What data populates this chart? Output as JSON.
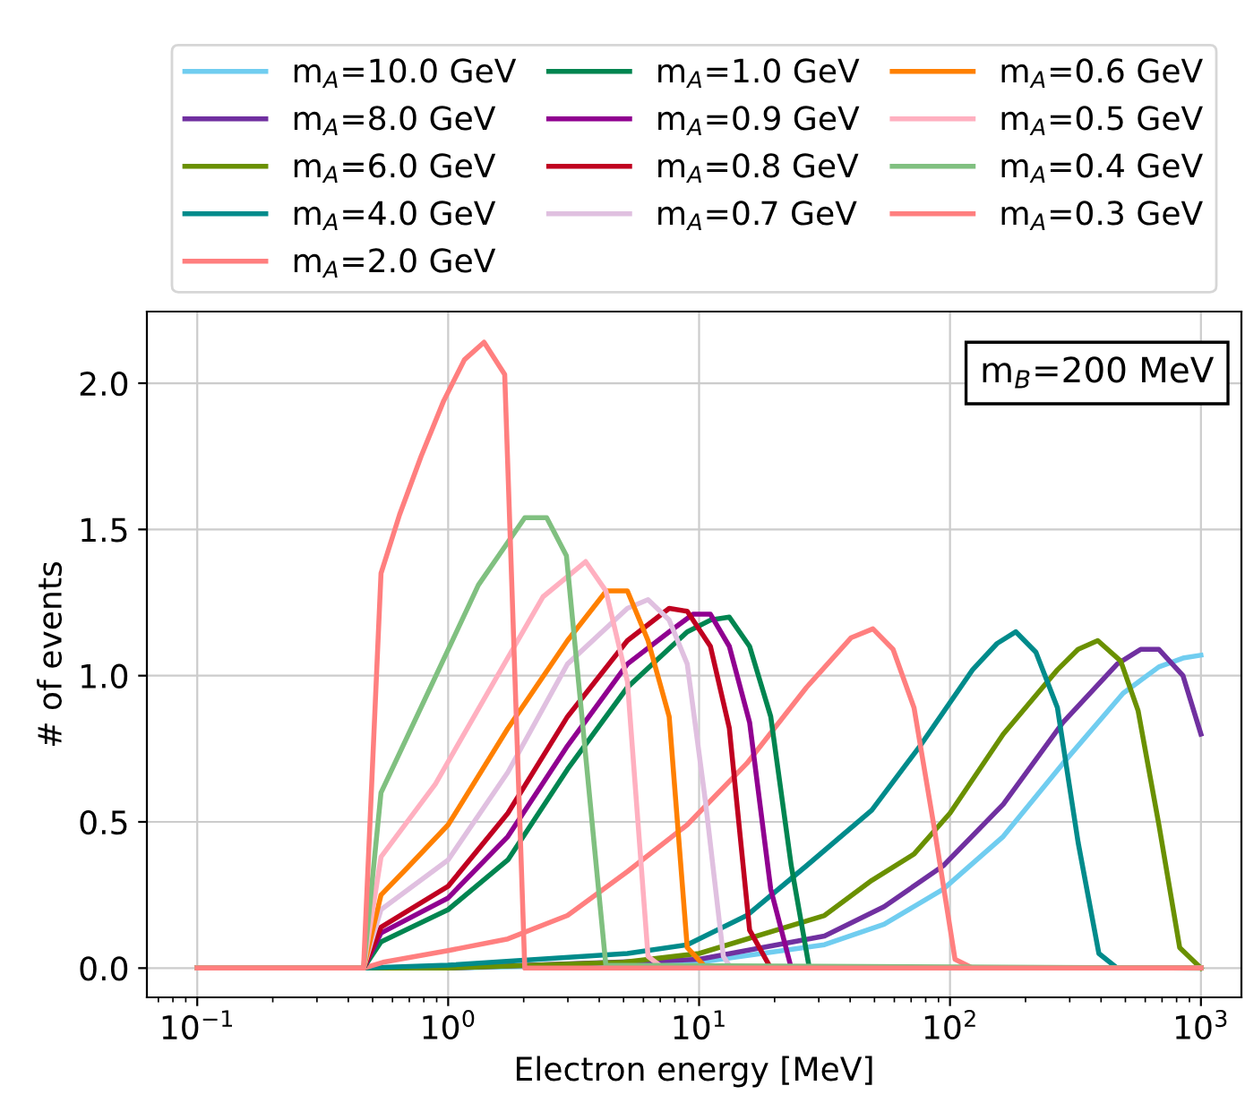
{
  "chart_data": {
    "type": "line",
    "xlabel": "Electron energy [MeV]",
    "ylabel": "# of events",
    "log": "x",
    "grid": true,
    "legend": "top",
    "line_style": "solid",
    "marker": "none",
    "xlim": [
      0.063,
      1450
    ],
    "ylim": [
      -0.1,
      2.245
    ],
    "xticks": [
      {
        "value": 0.1,
        "label": "10$^{−1}$"
      },
      {
        "value": 1,
        "label": "10$^{0}$"
      },
      {
        "value": 10,
        "label": "10$^{1}$"
      },
      {
        "value": 100,
        "label": "10$^{2}$"
      },
      {
        "value": 1000,
        "label": "10$^{3}$"
      }
    ],
    "yticks": [
      {
        "value": 0,
        "label": "0.0"
      },
      {
        "value": 0.5,
        "label": "0.5"
      },
      {
        "value": 1,
        "label": "1.0"
      },
      {
        "value": 1.5,
        "label": "1.5"
      },
      {
        "value": 2,
        "label": "2.0"
      }
    ],
    "annotations": [
      "m$_{B}$=200 MeV"
    ],
    "series": [
      {
        "name": "m$_{A}$=10.0 GeV",
        "color": "#70cdf0",
        "x": [
          0.1,
          0.46,
          1,
          10,
          31.6,
          54.6,
          94,
          163,
          282,
          490,
          680,
          848,
          1000
        ],
        "values": [
          0,
          0,
          0.0,
          0.02,
          0.08,
          0.15,
          0.27,
          0.45,
          0.7,
          0.94,
          1.03,
          1.06,
          1.07
        ]
      },
      {
        "name": "m$_{A}$=8.0 GeV",
        "color": "#7030a0",
        "x": [
          0.1,
          0.46,
          1,
          10,
          31.6,
          54.6,
          94,
          163,
          282,
          464,
          575,
          680,
          848,
          1000
        ],
        "values": [
          0,
          0,
          0.0,
          0.03,
          0.11,
          0.21,
          0.35,
          0.56,
          0.84,
          1.04,
          1.09,
          1.09,
          1.0,
          0.8
        ]
      },
      {
        "name": "m$_{A}$=6.0 GeV",
        "color": "#6a9000",
        "x": [
          0.1,
          0.46,
          1,
          5,
          10,
          31.6,
          48.8,
          71.9,
          100,
          163,
          268,
          324,
          388,
          479,
          562,
          680,
          823,
          1000
        ],
        "values": [
          0,
          0,
          0.0,
          0.02,
          0.05,
          0.18,
          0.3,
          0.39,
          0.53,
          0.8,
          1.02,
          1.09,
          1.12,
          1.05,
          0.88,
          0.49,
          0.07,
          0
        ]
      },
      {
        "name": "m$_{A}$=4.0 GeV",
        "color": "#008b8b",
        "x": [
          0.1,
          0.46,
          1,
          5.18,
          8.97,
          15.5,
          26.8,
          48.8,
          76,
          123,
          154,
          183,
          220,
          268,
          324,
          392,
          464,
          1000
        ],
        "values": [
          0,
          0,
          0.01,
          0.05,
          0.08,
          0.18,
          0.35,
          0.54,
          0.76,
          1.02,
          1.11,
          1.15,
          1.08,
          0.89,
          0.43,
          0.05,
          0,
          0
        ]
      },
      {
        "name": "m$_{A}$=2.0 GeV",
        "color": "#ff7f7f",
        "x": [
          0.1,
          0.46,
          0.55,
          1,
          1.73,
          2.99,
          5.18,
          8.97,
          15.5,
          26.8,
          40.4,
          49.3,
          59.3,
          71.9,
          86.9,
          104.7,
          123,
          1000
        ],
        "values": [
          0,
          0,
          0.02,
          0.06,
          0.1,
          0.18,
          0.33,
          0.49,
          0.7,
          0.96,
          1.13,
          1.16,
          1.09,
          0.89,
          0.47,
          0.03,
          0,
          0
        ]
      },
      {
        "name": "m$_{A}$=1.0 GeV",
        "color": "#008550",
        "x": [
          0.1,
          0.46,
          0.54,
          1,
          1.73,
          2.99,
          5.18,
          8.97,
          11.1,
          13.2,
          15.9,
          19.3,
          23.3,
          27.5,
          1000
        ],
        "values": [
          0,
          0,
          0.09,
          0.2,
          0.37,
          0.68,
          0.96,
          1.15,
          1.19,
          1.2,
          1.1,
          0.86,
          0.35,
          0,
          0
        ]
      },
      {
        "name": "m$_{A}$=0.9 GeV",
        "color": "#900090",
        "x": [
          0.1,
          0.46,
          0.54,
          1,
          1.73,
          2.99,
          5.18,
          7.6,
          9.46,
          11.1,
          13.2,
          15.9,
          19.3,
          23.3,
          1000
        ],
        "values": [
          0,
          0,
          0.12,
          0.24,
          0.45,
          0.76,
          1.04,
          1.15,
          1.21,
          1.21,
          1.1,
          0.84,
          0.27,
          0,
          0
        ]
      },
      {
        "name": "m$_{A}$=0.8 GeV",
        "color": "#c00020",
        "x": [
          0.1,
          0.46,
          0.54,
          1,
          1.73,
          2.99,
          5.18,
          7.6,
          8.97,
          11.1,
          13.2,
          15.9,
          19.3,
          1000
        ],
        "values": [
          0,
          0,
          0.14,
          0.28,
          0.53,
          0.86,
          1.12,
          1.23,
          1.22,
          1.1,
          0.82,
          0.13,
          0,
          0
        ]
      },
      {
        "name": "m$_{A}$=0.7 GeV",
        "color": "#e0c0e0",
        "x": [
          0.1,
          0.46,
          0.54,
          1,
          1.73,
          2.99,
          5.18,
          6.26,
          7.6,
          8.97,
          10.6,
          12.5,
          13.4,
          1000
        ],
        "values": [
          0,
          0,
          0.2,
          0.37,
          0.67,
          1.04,
          1.23,
          1.26,
          1.19,
          1.04,
          0.57,
          0.04,
          0,
          0
        ]
      },
      {
        "name": "m$_{A}$=0.6 GeV",
        "color": "#ff8000",
        "x": [
          0.1,
          0.46,
          0.54,
          0.7,
          1,
          1.73,
          2.99,
          4.27,
          5.18,
          6.26,
          7.6,
          8.97,
          10.7,
          1000
        ],
        "values": [
          0,
          0,
          0.25,
          0.35,
          0.49,
          0.82,
          1.12,
          1.29,
          1.29,
          1.12,
          0.86,
          0.07,
          0,
          0
        ]
      },
      {
        "name": "m$_{A}$=0.5 GeV",
        "color": "#ffb0c0",
        "x": [
          0.1,
          0.46,
          0.54,
          0.89,
          1.39,
          2.39,
          3.53,
          4.25,
          5.18,
          6.26,
          7.2,
          1000
        ],
        "values": [
          0,
          0,
          0.38,
          0.63,
          0.92,
          1.27,
          1.39,
          1.29,
          0.98,
          0.04,
          0,
          0
        ]
      },
      {
        "name": "m$_{A}$=0.4 GeV",
        "color": "#80c080",
        "x": [
          0.1,
          0.46,
          0.54,
          0.85,
          1.32,
          2.02,
          2.47,
          2.96,
          4.25,
          1000
        ],
        "values": [
          0,
          0,
          0.6,
          0.96,
          1.31,
          1.54,
          1.54,
          1.41,
          0.01,
          0
        ]
      },
      {
        "name": "m$_{A}$=0.3 GeV",
        "color": "#ff7f7f",
        "x": [
          0.1,
          0.46,
          0.54,
          0.64,
          0.78,
          0.96,
          1.16,
          1.39,
          1.68,
          2.02,
          1000
        ],
        "values": [
          0,
          0,
          1.35,
          1.55,
          1.75,
          1.94,
          2.08,
          2.14,
          2.03,
          0,
          0
        ]
      }
    ]
  }
}
